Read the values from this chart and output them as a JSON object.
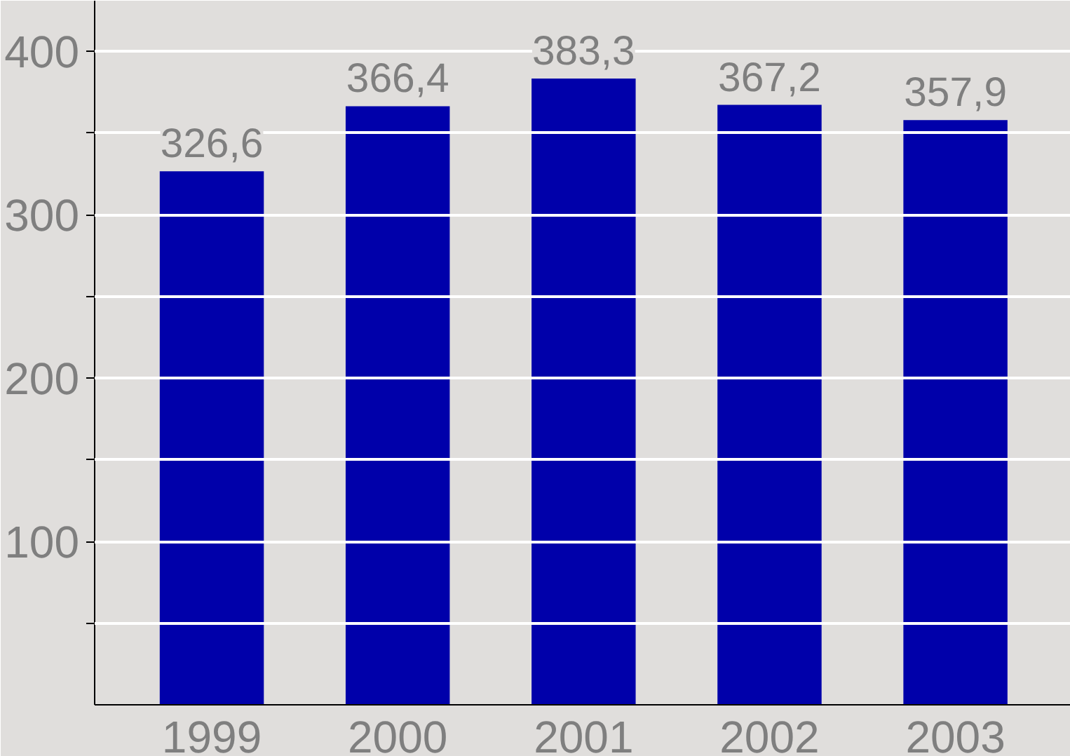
{
  "chart_data": {
    "type": "bar",
    "categories": [
      "1999",
      "2000",
      "2001",
      "2002",
      "2003"
    ],
    "values": [
      326.6,
      366.4,
      383.3,
      367.2,
      357.9
    ],
    "value_labels": [
      "326,6",
      "366,4",
      "383,3",
      "367,2",
      "357,9"
    ],
    "color": "#0000aa",
    "ylim": [
      0,
      431
    ],
    "yticks": [
      {
        "value": 50,
        "label": null
      },
      100,
      {
        "value": 150,
        "label": null
      },
      200,
      {
        "value": 250,
        "label": null
      },
      300,
      {
        "value": 350,
        "label": null
      },
      400
    ],
    "grid": "y"
  }
}
